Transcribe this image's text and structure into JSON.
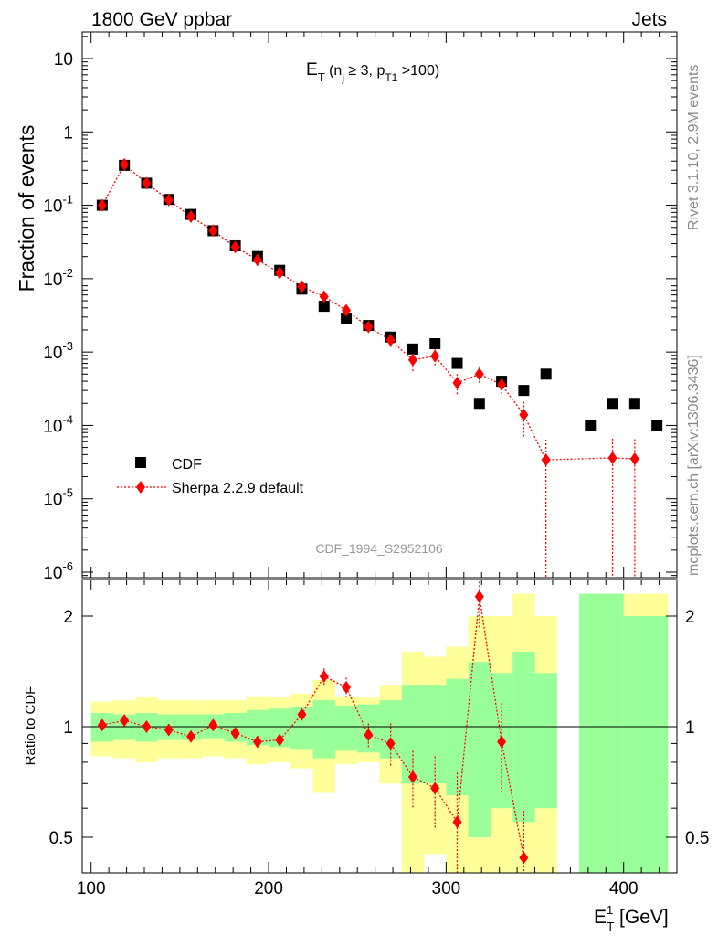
{
  "header": {
    "left": "1800 GeV ppbar",
    "right": "Jets"
  },
  "side": {
    "right_top": "Rivet 3.1.10,  2.9M events",
    "right_bottom": "mcplots.cern.ch [arXiv:1306.3436]"
  },
  "chart_data": [
    {
      "type": "scatter",
      "panel": "main",
      "title": "E_T (n_j ≥ 3, p_T1 >100)",
      "ylabel": "Fraction of events",
      "watermark": "CDF_1994_S2952106",
      "yscale": "log",
      "ylim": [
        9e-07,
        25
      ],
      "xlim": [
        95,
        430
      ],
      "y_tick_labels": [
        "10",
        "1",
        "10^-1",
        "10^-2",
        "10^-3",
        "10^-4",
        "10^-5",
        "10^-6"
      ],
      "legend_position": "lower-left",
      "series": [
        {
          "name": "CDF",
          "color": "#000000",
          "marker": "square",
          "x": [
            106.25,
            118.75,
            131.25,
            143.75,
            156.25,
            168.75,
            181.25,
            193.75,
            206.25,
            218.75,
            231.25,
            243.75,
            256.25,
            268.75,
            281.25,
            293.75,
            306.25,
            318.75,
            331.25,
            343.75,
            356.25,
            381.25,
            393.75,
            406.25,
            418.75
          ],
          "y": [
            0.1,
            0.35,
            0.2,
            0.12,
            0.075,
            0.045,
            0.028,
            0.02,
            0.013,
            0.0072,
            0.0042,
            0.0029,
            0.0023,
            0.0016,
            0.0011,
            0.0013,
            0.0007,
            0.0002,
            0.0004,
            0.0003,
            0.0005,
            0.0001,
            0.0002,
            0.0002,
            0.0001
          ]
        },
        {
          "name": "Sherpa 2.2.9 default",
          "color": "#ff0000",
          "marker": "diamond",
          "x": [
            106.25,
            118.75,
            131.25,
            143.75,
            156.25,
            168.75,
            181.25,
            193.75,
            206.25,
            218.75,
            231.25,
            243.75,
            256.25,
            268.75,
            281.25,
            293.75,
            306.25,
            318.75,
            331.25,
            343.75,
            356.25,
            393.75,
            406.25
          ],
          "y": [
            0.1,
            0.36,
            0.2,
            0.118,
            0.07,
            0.045,
            0.027,
            0.018,
            0.012,
            0.0078,
            0.0057,
            0.0037,
            0.0022,
            0.00145,
            0.00078,
            0.00088,
            0.00038,
            0.0005,
            0.00036,
            0.00014,
            3.4e-05,
            3.6e-05,
            3.5e-05
          ],
          "yerr_low": [
            0,
            0,
            0,
            0,
            0,
            0,
            0,
            0,
            0,
            0,
            0,
            0,
            0,
            0.0003,
            0.00025,
            0.00022,
            0.00012,
            0.00014,
            9e-05,
            7e-05,
            3.39e-05,
            3.59e-05,
            3.49e-05
          ],
          "yerr_high": [
            0,
            0,
            0,
            0,
            0,
            0,
            0,
            0,
            0,
            0,
            0,
            0,
            0,
            0.0003,
            0.00025,
            0.00022,
            0.00012,
            0.00014,
            9e-05,
            7e-05,
            3e-05,
            3e-05,
            3e-05
          ]
        }
      ]
    },
    {
      "type": "scatter",
      "panel": "ratio",
      "ylabel": "Ratio to CDF",
      "xlabel": "E_T^1 [GeV]",
      "ylim": [
        0.35,
        2.3
      ],
      "xlim": [
        95,
        430
      ],
      "y_tick_labels": [
        "0.5",
        "1",
        "2"
      ],
      "x_tick_labels": [
        "100",
        "200",
        "300",
        "400"
      ],
      "bands": {
        "edges": [
          100,
          112.5,
          125,
          137.5,
          150,
          162.5,
          175,
          187.5,
          200,
          212.5,
          225,
          237.5,
          250,
          262.5,
          275,
          287.5,
          300,
          312.5,
          325,
          337.5,
          350,
          362.5,
          375,
          387.5,
          400,
          412.5,
          425
        ],
        "inner_lo": [
          0.91,
          0.92,
          0.91,
          0.92,
          0.92,
          0.93,
          0.91,
          0.89,
          0.88,
          0.87,
          0.82,
          0.86,
          0.85,
          0.82,
          0.7,
          0.7,
          0.65,
          0.5,
          0.6,
          0.55,
          0.6,
          null,
          0.0,
          0.0,
          0.0,
          0.0
        ],
        "inner_hi": [
          1.09,
          1.08,
          1.09,
          1.08,
          1.08,
          1.08,
          1.09,
          1.11,
          1.12,
          1.13,
          1.18,
          1.14,
          1.15,
          1.18,
          1.3,
          1.3,
          1.35,
          1.5,
          1.4,
          1.6,
          1.4,
          null,
          2.3,
          2.3,
          2.0,
          2.0
        ],
        "outer_lo": [
          0.83,
          0.82,
          0.8,
          0.82,
          0.82,
          0.83,
          0.82,
          0.79,
          0.8,
          0.77,
          0.66,
          0.79,
          0.8,
          0.7,
          0.4,
          0.45,
          0.35,
          0.0,
          0.0,
          0.0,
          0.0,
          null,
          0.0,
          0.0,
          0.0,
          0.0
        ],
        "outer_hi": [
          1.17,
          1.18,
          1.2,
          1.18,
          1.18,
          1.18,
          1.18,
          1.21,
          1.2,
          1.23,
          1.34,
          1.21,
          1.2,
          1.3,
          1.6,
          1.55,
          1.65,
          2.0,
          2.0,
          2.3,
          2.0,
          null,
          2.3,
          2.3,
          2.3,
          2.3
        ],
        "colors": {
          "inner": "#99ff99",
          "outer": "#ffff99"
        }
      },
      "reference_line": 1,
      "series": [
        {
          "name": "Sherpa 2.2.9 default",
          "color": "#ff0000",
          "x": [
            106.25,
            118.75,
            131.25,
            143.75,
            156.25,
            168.75,
            181.25,
            193.75,
            206.25,
            218.75,
            231.25,
            243.75,
            256.25,
            268.75,
            281.25,
            293.75,
            306.25,
            318.75,
            331.25,
            343.75
          ],
          "y": [
            1.01,
            1.04,
            1.0,
            0.98,
            0.94,
            1.01,
            0.96,
            0.91,
            0.92,
            1.08,
            1.37,
            1.28,
            0.95,
            0.9,
            0.73,
            0.68,
            0.55,
            2.26,
            0.91,
            0.44
          ],
          "yerr": [
            0,
            0,
            0,
            0,
            0,
            0,
            0,
            0,
            0,
            0,
            0.07,
            0.08,
            0.07,
            0.12,
            0.13,
            0.15,
            0.2,
            0.4,
            0.25,
            0.15
          ]
        }
      ]
    }
  ],
  "colors": {
    "data": "#000000",
    "mc": "#ff0000",
    "stat_band": "#99ff99",
    "syst_band": "#ffff99",
    "side_text": "#888888"
  }
}
